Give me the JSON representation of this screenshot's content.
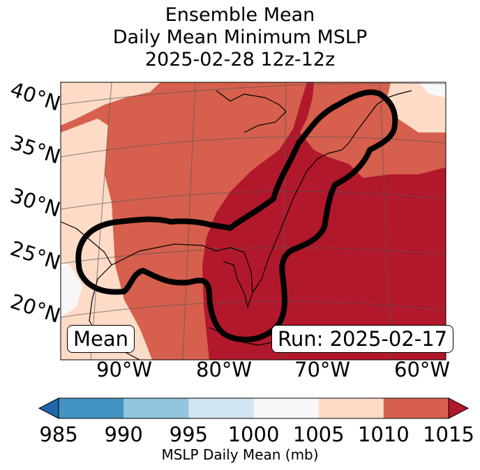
{
  "title": {
    "line1": "Ensemble Mean",
    "line2": "Daily Mean Minimum MSLP",
    "line3": "2025-02-28 12z-12z"
  },
  "map": {
    "lat_labels": [
      "40°N",
      "35°N",
      "30°N",
      "25°N",
      "20°N"
    ],
    "lon_labels": [
      "90°W",
      "80°W",
      "70°W",
      "60°W"
    ],
    "mean_label": "Mean",
    "run_label": "Run: 2025-02-17",
    "outline_color": "#000000"
  },
  "colorbar": {
    "label": "MSLP Daily Mean (mb)",
    "ticks": [
      "985",
      "990",
      "995",
      "1000",
      "1005",
      "1010",
      "1015"
    ],
    "bins": [
      {
        "from": 985,
        "to": 990,
        "color": "#4393c3"
      },
      {
        "from": 990,
        "to": 995,
        "color": "#92c5de"
      },
      {
        "from": 995,
        "to": 1000,
        "color": "#d1e5f0"
      },
      {
        "from": 1000,
        "to": 1005,
        "color": "#f7f7f7"
      },
      {
        "from": 1005,
        "to": 1010,
        "color": "#fddbc7"
      },
      {
        "from": 1010,
        "to": 1015,
        "color": "#d6604d"
      }
    ],
    "under_color": "#2166ac",
    "over_color": "#b2182b"
  }
}
